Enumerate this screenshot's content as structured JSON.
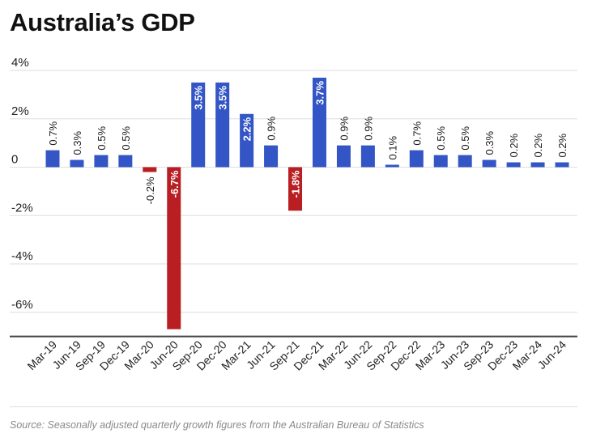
{
  "title": "Australia’s GDP",
  "source": "Source: Seasonally adjusted quarterly growth figures from the Australian Bureau of Statistics",
  "colors": {
    "positive": "#3355c5",
    "negative": "#b81e22",
    "grid": "#dedede",
    "axis": "#444444",
    "text": "#222222"
  },
  "chart_data": {
    "type": "bar",
    "title": "Australia’s GDP",
    "xlabel": "",
    "ylabel": "",
    "ylim": [
      -7,
      4
    ],
    "yticks": [
      4,
      2,
      0,
      -2,
      -4,
      -6
    ],
    "ytick_labels": [
      "4%",
      "2%",
      "0",
      "-2%",
      "-4%",
      "-6%"
    ],
    "grid": true,
    "categories": [
      "Mar-19",
      "Jun-19",
      "Sep-19",
      "Dec-19",
      "Mar-20",
      "Jun-20",
      "Sep-20",
      "Dec-20",
      "Mar-21",
      "Jun-21",
      "Sep-21",
      "Dec-21",
      "Mar-22",
      "Jun-22",
      "Sep-22",
      "Dec-22",
      "Mar-23",
      "Jun-23",
      "Sep-23",
      "Dec-23",
      "Mar-24",
      "Jun-24"
    ],
    "values": [
      0.7,
      0.3,
      0.5,
      0.5,
      -0.2,
      -6.7,
      3.5,
      3.5,
      2.2,
      0.9,
      -1.8,
      3.7,
      0.9,
      0.9,
      0.1,
      0.7,
      0.5,
      0.5,
      0.3,
      0.2,
      0.2,
      0.2
    ],
    "labels": [
      "0.7%",
      "0.3%",
      "0.5%",
      "0.5%",
      "-0.2%",
      "-6.7%",
      "3.5%",
      "3.5%",
      "2.2%",
      "0.9%",
      "-1.8%",
      "3.7%",
      "0.9%",
      "0.9%",
      "0.1%",
      "0.7%",
      "0.5%",
      "0.5%",
      "0.3%",
      "0.2%",
      "0.2%",
      "0.2%"
    ]
  }
}
